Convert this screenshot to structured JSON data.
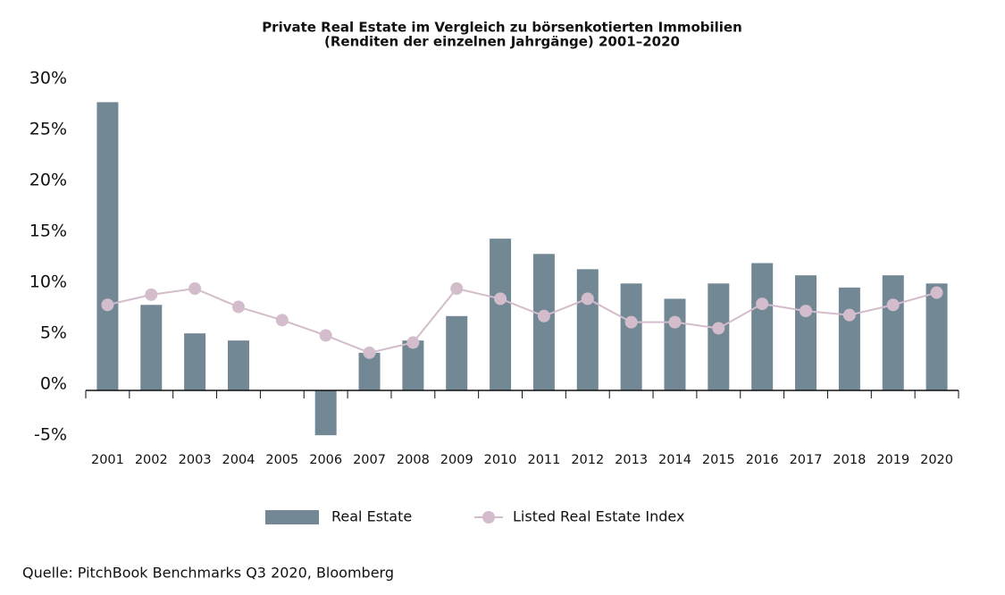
{
  "chart_data": {
    "type": "bar",
    "title": "Private Real Estate im Vergleich zu börsenkotierten Immobilien",
    "subtitle": "(Renditen der einzelnen Jahrgänge) 2001–2020",
    "categories": [
      "2001",
      "2002",
      "2003",
      "2004",
      "2005",
      "2006",
      "2007",
      "2008",
      "2009",
      "2010",
      "2011",
      "2012",
      "2013",
      "2014",
      "2015",
      "2016",
      "2017",
      "2018",
      "2019",
      "2020"
    ],
    "series": [
      {
        "name": "Real Estate",
        "type": "bar",
        "color": "#738895",
        "values": [
          28.3,
          8.4,
          5.6,
          4.9,
          0,
          -4.4,
          3.7,
          4.9,
          7.3,
          14.9,
          13.4,
          11.9,
          10.5,
          9.0,
          10.5,
          12.5,
          11.3,
          10.1,
          11.3,
          10.5
        ]
      },
      {
        "name": "Listed Real Estate Index",
        "type": "line",
        "color": "#d3bccb",
        "values": [
          8.4,
          9.4,
          10.0,
          8.2,
          6.9,
          5.4,
          3.7,
          4.7,
          10.0,
          9.0,
          7.3,
          9.0,
          6.7,
          6.7,
          6.1,
          8.5,
          7.8,
          7.4,
          8.4,
          9.6
        ]
      }
    ],
    "ylim": [
      -5,
      30
    ],
    "yticks": [
      {
        "value": -5,
        "label": "-5%"
      },
      {
        "value": 0,
        "label": "0%"
      },
      {
        "value": 5,
        "label": "5%"
      },
      {
        "value": 10,
        "label": "10%"
      },
      {
        "value": 15,
        "label": "15%"
      },
      {
        "value": 20,
        "label": "20%"
      },
      {
        "value": 25,
        "label": "25%"
      },
      {
        "value": 30,
        "label": "30%"
      }
    ],
    "grid": false,
    "legend": "bottom",
    "source": "Quelle: PitchBook Benchmarks Q3 2020, Bloomberg"
  }
}
